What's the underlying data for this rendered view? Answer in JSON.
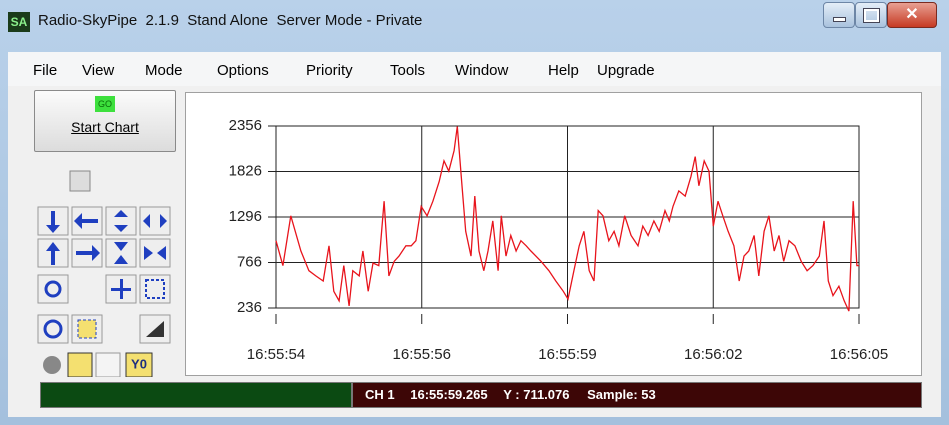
{
  "window": {
    "icon": "SA",
    "title": "Radio-SkyPipe  2.1.9  Stand Alone  Server Mode - Private"
  },
  "menu": [
    "File",
    "View",
    "Mode",
    "Options",
    "Priority",
    "Tools",
    "Window",
    "Help",
    "Upgrade"
  ],
  "start_button": {
    "icon": "GO",
    "label": "Start Chart"
  },
  "toolbar": {
    "y0_label": "Y0"
  },
  "status": [
    "CH 1",
    "16:55:59.265",
    "Y : 711.076",
    "Sample: 53"
  ],
  "chart_data": {
    "type": "line",
    "x": [
      0,
      0.13,
      0.28,
      0.47,
      0.62,
      0.75,
      0.89,
      1.0,
      1.09,
      1.19,
      1.28,
      1.38,
      1.45,
      1.57,
      1.64,
      1.74,
      1.83,
      1.94,
      2.04,
      2.13,
      2.23,
      2.32,
      2.45,
      2.55,
      2.64,
      2.74,
      2.85,
      2.96,
      3.08,
      3.17,
      3.26,
      3.36,
      3.42,
      3.51,
      3.58,
      3.68,
      3.75,
      3.83,
      3.92,
      4.0,
      4.09,
      4.19,
      4.25,
      4.34,
      4.43,
      4.53,
      4.62,
      4.72,
      4.81,
      5.0,
      5.15,
      5.28,
      5.42,
      5.51,
      5.62,
      5.72,
      5.81,
      5.91,
      6.0,
      6.08,
      6.17,
      6.28,
      6.38,
      6.47,
      6.58,
      6.7,
      6.83,
      6.92,
      7.02,
      7.13,
      7.23,
      7.34,
      7.42,
      7.49,
      7.6,
      7.72,
      7.83,
      7.91,
      7.98,
      8.08,
      8.17,
      8.25,
      8.34,
      8.43,
      8.53,
      8.64,
      8.74,
      8.83,
      8.92,
      9.02,
      9.11,
      9.21,
      9.3,
      9.4,
      9.49,
      9.58,
      9.68,
      9.79,
      9.91,
      10.02,
      10.13,
      10.25,
      10.34,
      10.42,
      10.51,
      10.62,
      10.72,
      10.81,
      10.89,
      10.96,
      11.0
    ],
    "series": [
      {
        "color": "#e8141c",
        "values": [
          1020,
          730,
          1310,
          900,
          670,
          610,
          550,
          960,
          430,
          320,
          730,
          260,
          670,
          610,
          900,
          430,
          760,
          730,
          1480,
          610,
          780,
          840,
          960,
          960,
          1020,
          1420,
          1310,
          1480,
          1710,
          1950,
          1830,
          2070,
          2350,
          1660,
          1130,
          840,
          1540,
          900,
          670,
          900,
          1250,
          670,
          1310,
          840,
          1080,
          900,
          1020,
          960,
          900,
          780,
          670,
          550,
          430,
          340,
          670,
          960,
          1130,
          670,
          550,
          1370,
          1310,
          1020,
          1130,
          960,
          1310,
          1080,
          960,
          1190,
          1080,
          1250,
          1130,
          1370,
          1250,
          1420,
          1600,
          1540,
          1770,
          2000,
          1660,
          1950,
          1830,
          1190,
          1480,
          1310,
          1130,
          960,
          550,
          840,
          900,
          1080,
          610,
          1130,
          1310,
          900,
          1080,
          780,
          1020,
          960,
          780,
          670,
          730,
          840,
          1250,
          550,
          380,
          490,
          320,
          200,
          1480,
          730,
          730
        ]
      }
    ],
    "xlim": [
      0,
      11
    ],
    "xticks": [
      {
        "value": 0,
        "label": "16:55:54"
      },
      {
        "value": 2.75,
        "label": "16:55:56"
      },
      {
        "value": 5.5,
        "label": "16:55:59"
      },
      {
        "value": 8.25,
        "label": "16:56:02"
      },
      {
        "value": 11,
        "label": "16:56:05"
      }
    ],
    "ylim": [
      236,
      2356
    ],
    "yticks": [
      236,
      766,
      1296,
      1826,
      2356
    ],
    "grid": true
  }
}
